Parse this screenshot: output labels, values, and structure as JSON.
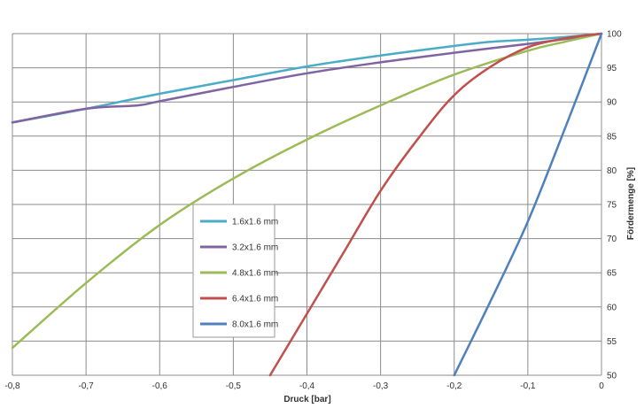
{
  "chart_data": {
    "type": "line",
    "xlabel": "Druck [bar]",
    "ylabel": "Fördermenge [%]",
    "xlim": [
      -0.8,
      0
    ],
    "ylim": [
      50,
      100
    ],
    "xticks": [
      -0.8,
      -0.7,
      -0.6,
      -0.5,
      -0.4,
      -0.3,
      -0.2,
      -0.1,
      0
    ],
    "xtick_labels": [
      "-0,8",
      "-0,7",
      "-0,6",
      "-0,5",
      "-0,4",
      "-0,3",
      "-0,2",
      "-0,1",
      "0"
    ],
    "yticks": [
      50,
      55,
      60,
      65,
      70,
      75,
      80,
      85,
      90,
      95,
      100
    ],
    "yaxis_side": "right",
    "grid": true,
    "legend_position": "center-left",
    "series": [
      {
        "name": "1.6x1.6 mm",
        "color": "#4BACC6",
        "points": [
          [
            -0.8,
            87
          ],
          [
            -0.7,
            89
          ],
          [
            -0.6,
            91.2
          ],
          [
            -0.5,
            93.2
          ],
          [
            -0.4,
            95.2
          ],
          [
            -0.3,
            96.8
          ],
          [
            -0.2,
            98.2
          ],
          [
            -0.15,
            98.8
          ],
          [
            -0.1,
            99.1
          ],
          [
            -0.05,
            99.5
          ],
          [
            0,
            100
          ]
        ]
      },
      {
        "name": "3.2x1.6 mm",
        "color": "#8064A2",
        "points": [
          [
            -0.8,
            87
          ],
          [
            -0.7,
            89
          ],
          [
            -0.63,
            89.5
          ],
          [
            -0.6,
            90.1
          ],
          [
            -0.5,
            92.2
          ],
          [
            -0.4,
            94.2
          ],
          [
            -0.3,
            95.8
          ],
          [
            -0.2,
            97.2
          ],
          [
            -0.1,
            98.5
          ],
          [
            -0.05,
            99.2
          ],
          [
            0,
            100
          ]
        ]
      },
      {
        "name": "4.8x1.6 mm",
        "color": "#9BBB59",
        "points": [
          [
            -0.8,
            54
          ],
          [
            -0.7,
            63.5
          ],
          [
            -0.6,
            72
          ],
          [
            -0.5,
            78.8
          ],
          [
            -0.4,
            84.5
          ],
          [
            -0.3,
            89.5
          ],
          [
            -0.2,
            94
          ],
          [
            -0.1,
            97.5
          ],
          [
            -0.05,
            98.8
          ],
          [
            0,
            100
          ]
        ]
      },
      {
        "name": "6.4x1.6 mm",
        "color": "#C0504D",
        "points": [
          [
            -0.45,
            50
          ],
          [
            -0.4,
            59
          ],
          [
            -0.35,
            68
          ],
          [
            -0.3,
            77
          ],
          [
            -0.25,
            84.5
          ],
          [
            -0.2,
            91
          ],
          [
            -0.15,
            95.2
          ],
          [
            -0.1,
            98
          ],
          [
            -0.05,
            99.3
          ],
          [
            0,
            100
          ]
        ]
      },
      {
        "name": "8.0x1.6 mm",
        "color": "#4F81BD",
        "points": [
          [
            -0.2,
            50
          ],
          [
            -0.15,
            61
          ],
          [
            -0.1,
            72.5
          ],
          [
            -0.05,
            86
          ],
          [
            0,
            100
          ]
        ]
      }
    ]
  }
}
